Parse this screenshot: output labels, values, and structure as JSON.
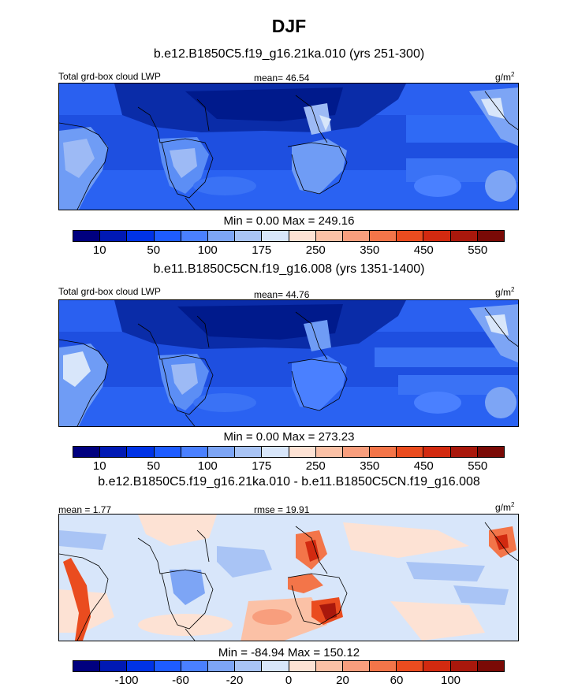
{
  "title": "DJF",
  "panels": [
    {
      "subtitle": "b.e12.B1850C5.f19_g16.21ka.010 (yrs 251-300)",
      "left_label": "Total grd-box cloud LWP",
      "center_label": "mean=  46.54",
      "unit_base": "g/m",
      "unit_exp": "2",
      "minmax": "Min =   0.00 Max = 249.16",
      "colorbar": {
        "colors": [
          "#00007f",
          "#0019b4",
          "#0033e6",
          "#1e5cff",
          "#4a80ff",
          "#7da5f5",
          "#a9c4f5",
          "#d8e6fa",
          "#fde2d4",
          "#fbc1a6",
          "#f89e7d",
          "#f37549",
          "#ea4c1f",
          "#d22a10",
          "#a9180c",
          "#7a0a06"
        ],
        "ticks": [
          "10",
          "50",
          "100",
          "175",
          "250",
          "350",
          "450",
          "550"
        ]
      }
    },
    {
      "subtitle": "b.e11.B1850C5CN.f19_g16.008 (yrs 1351-1400)",
      "left_label": "Total grd-box cloud LWP",
      "center_label": "mean=  44.76",
      "unit_base": "g/m",
      "unit_exp": "2",
      "minmax": "Min =   0.00 Max = 273.23",
      "colorbar": {
        "colors": [
          "#00007f",
          "#0019b4",
          "#0033e6",
          "#1e5cff",
          "#4a80ff",
          "#7da5f5",
          "#a9c4f5",
          "#d8e6fa",
          "#fde2d4",
          "#fbc1a6",
          "#f89e7d",
          "#f37549",
          "#ea4c1f",
          "#d22a10",
          "#a9180c",
          "#7a0a06"
        ],
        "ticks": [
          "10",
          "50",
          "100",
          "175",
          "250",
          "350",
          "450",
          "550"
        ]
      }
    },
    {
      "subtitle": "b.e12.B1850C5.f19_g16.21ka.010 - b.e11.B1850C5CN.f19_g16.008",
      "left_label": "mean =   1.77",
      "center_label": "rmse =  19.91",
      "unit_base": "g/m",
      "unit_exp": "2",
      "minmax": "Min = -84.94 Max = 150.12",
      "colorbar": {
        "colors": [
          "#00007f",
          "#0019b4",
          "#0033e6",
          "#1e5cff",
          "#4a80ff",
          "#7da5f5",
          "#a9c4f5",
          "#d8e6fa",
          "#fde2d4",
          "#fbc1a6",
          "#f89e7d",
          "#f37549",
          "#ea4c1f",
          "#d22a10",
          "#a9180c",
          "#7a0a06"
        ],
        "ticks": [
          "-100",
          "-60",
          "-20",
          "0",
          "20",
          "60",
          "100"
        ]
      }
    }
  ]
}
